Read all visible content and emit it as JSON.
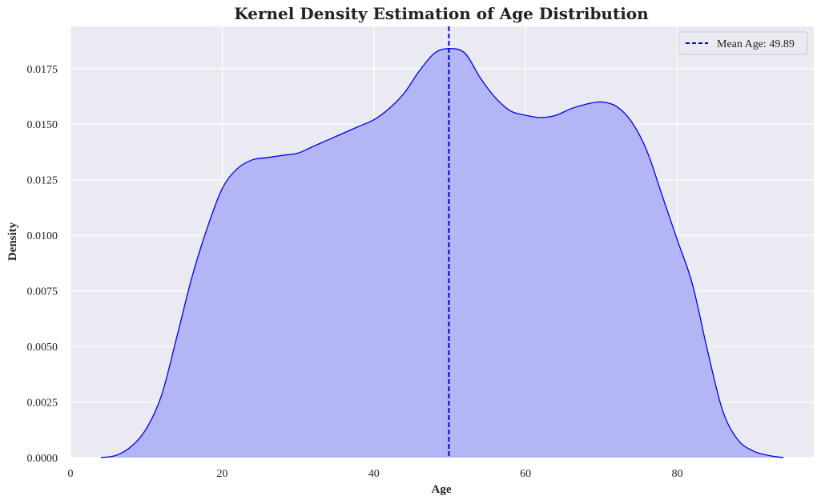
{
  "chart_data": {
    "type": "area",
    "title": "Kernel Density Estimation of Age Distribution",
    "xlabel": "Age",
    "ylabel": "Density",
    "xlim": [
      0,
      98
    ],
    "ylim": [
      0,
      0.0194
    ],
    "x_ticks": [
      0,
      20,
      40,
      60,
      80
    ],
    "y_ticks": [
      "0.0000",
      "0.0025",
      "0.0050",
      "0.0075",
      "0.0100",
      "0.0125",
      "0.0150",
      "0.0175"
    ],
    "grid": true,
    "legend_position": "top-right",
    "colors": {
      "background": "#eaeaf2",
      "grid": "#ffffff",
      "fill": "#aeb0f5",
      "line": "#0000ee",
      "mean_line": "#0000cc"
    },
    "series": [
      {
        "x": [
          4,
          6,
          8,
          10,
          12,
          14,
          16,
          18,
          20,
          22,
          24,
          26,
          28,
          30,
          32,
          34,
          36,
          38,
          40,
          42,
          44,
          46,
          48,
          49.9,
          52,
          54,
          56,
          58,
          60,
          62,
          64,
          66,
          68,
          70,
          72,
          74,
          76,
          78,
          80,
          82,
          84,
          86,
          88,
          90,
          92,
          94
        ],
        "y": [
          0.0,
          0.0001,
          0.0005,
          0.0013,
          0.0028,
          0.0054,
          0.0081,
          0.0103,
          0.0121,
          0.013,
          0.0134,
          0.0135,
          0.0136,
          0.0137,
          0.014,
          0.0143,
          0.0146,
          0.0149,
          0.0152,
          0.0157,
          0.0164,
          0.0174,
          0.0182,
          0.0184,
          0.0182,
          0.0171,
          0.0162,
          0.0156,
          0.0154,
          0.0153,
          0.0154,
          0.0157,
          0.0159,
          0.016,
          0.0158,
          0.0151,
          0.0138,
          0.0118,
          0.0098,
          0.0078,
          0.0048,
          0.0021,
          0.0008,
          0.0003,
          0.0001,
          0.0
        ]
      }
    ],
    "mean_line": {
      "x": 49.89,
      "label": "Mean Age: 49.89"
    }
  }
}
